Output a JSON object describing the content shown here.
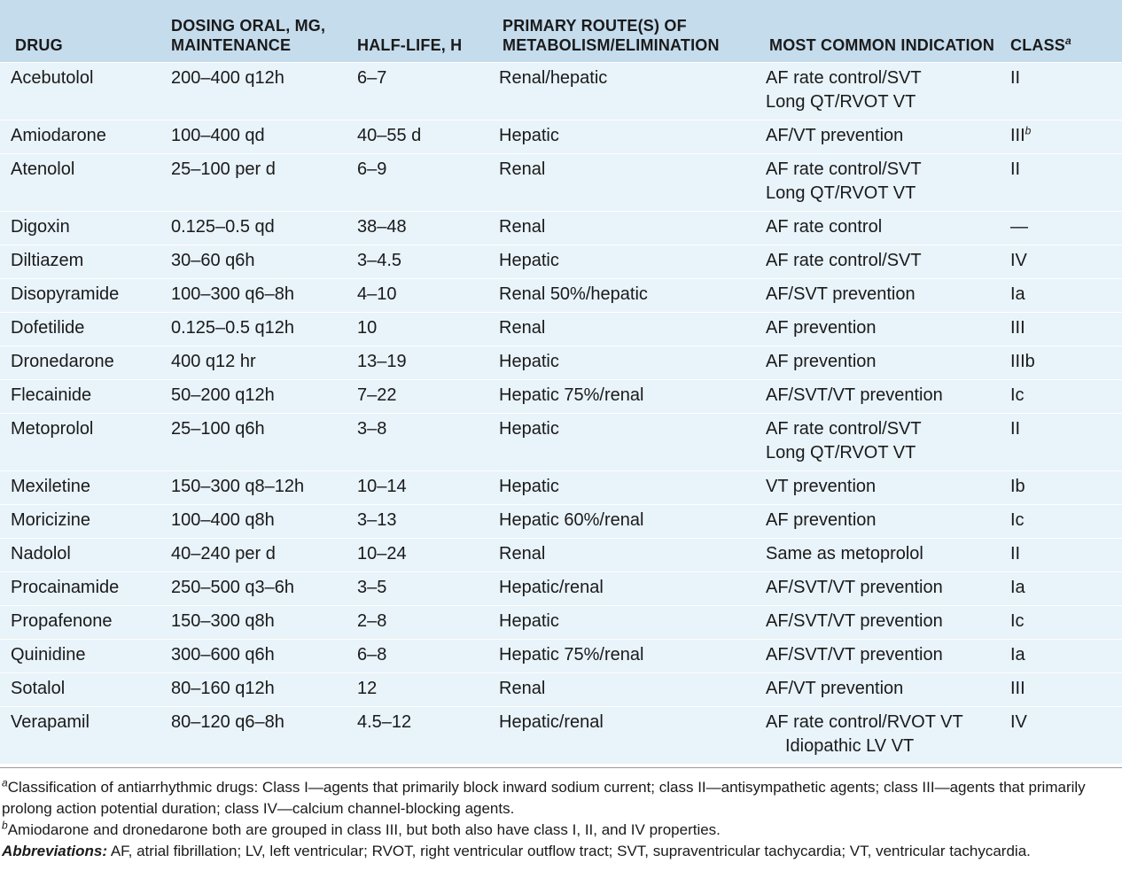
{
  "headers": {
    "drug": "DRUG",
    "dosing": "DOSING ORAL, MG, MAINTENANCE",
    "half_life": "HALF-LIFE, H",
    "route": "PRIMARY ROUTE(S) OF METABOLISM/ELIMINATION",
    "indication": "MOST COMMON INDICATION",
    "class": "CLASS",
    "class_sup": "a"
  },
  "rows": [
    {
      "drug": "Acebutolol",
      "dosing": "200–400 q12h",
      "half_life": "6–7",
      "route": "Renal/hepatic",
      "indication": "AF rate control/SVT",
      "indication2": "Long QT/RVOT VT",
      "class": "II",
      "class_sup": ""
    },
    {
      "drug": "Amiodarone",
      "dosing": "100–400 qd",
      "half_life": "40–55 d",
      "route": "Hepatic",
      "indication": "AF/VT prevention",
      "indication2": "",
      "class": "III",
      "class_sup": "b"
    },
    {
      "drug": "Atenolol",
      "dosing": "25–100 per d",
      "half_life": "6–9",
      "route": "Renal",
      "indication": "AF rate control/SVT",
      "indication2": "Long QT/RVOT VT",
      "class": "II",
      "class_sup": ""
    },
    {
      "drug": "Digoxin",
      "dosing": "0.125–0.5 qd",
      "half_life": "38–48",
      "route": "Renal",
      "indication": "AF rate control",
      "indication2": "",
      "class": "—",
      "class_sup": ""
    },
    {
      "drug": "Diltiazem",
      "dosing": "30–60 q6h",
      "half_life": "3–4.5",
      "route": "Hepatic",
      "indication": "AF rate control/SVT",
      "indication2": "",
      "class": "IV",
      "class_sup": ""
    },
    {
      "drug": "Disopyramide",
      "dosing": "100–300 q6–8h",
      "half_life": "4–10",
      "route": "Renal 50%/hepatic",
      "indication": "AF/SVT prevention",
      "indication2": "",
      "class": "Ia",
      "class_sup": ""
    },
    {
      "drug": "Dofetilide",
      "dosing": "0.125–0.5 q12h",
      "half_life": "10",
      "route": "Renal",
      "indication": "AF prevention",
      "indication2": "",
      "class": "III",
      "class_sup": ""
    },
    {
      "drug": "Dronedarone",
      "dosing": "400 q12 hr",
      "half_life": "13–19",
      "route": "Hepatic",
      "indication": "AF prevention",
      "indication2": "",
      "class": "IIIb",
      "class_sup": ""
    },
    {
      "drug": "Flecainide",
      "dosing": "50–200 q12h",
      "half_life": "7–22",
      "route": "Hepatic 75%/renal",
      "indication": "AF/SVT/VT prevention",
      "indication2": "",
      "class": "Ic",
      "class_sup": ""
    },
    {
      "drug": "Metoprolol",
      "dosing": "25–100 q6h",
      "half_life": "3–8",
      "route": "Hepatic",
      "indication": "AF rate control/SVT",
      "indication2": "Long QT/RVOT VT",
      "class": "II",
      "class_sup": ""
    },
    {
      "drug": "Mexiletine",
      "dosing": "150–300 q8–12h",
      "half_life": "10–14",
      "route": "Hepatic",
      "indication": "VT prevention",
      "indication2": "",
      "class": "Ib",
      "class_sup": ""
    },
    {
      "drug": "Moricizine",
      "dosing": "100–400 q8h",
      "half_life": "3–13",
      "route": "Hepatic 60%/renal",
      "indication": "AF prevention",
      "indication2": "",
      "class": "Ic",
      "class_sup": ""
    },
    {
      "drug": "Nadolol",
      "dosing": "40–240 per d",
      "half_life": "10–24",
      "route": "Renal",
      "indication": "Same as metoprolol",
      "indication2": "",
      "class": "II",
      "class_sup": ""
    },
    {
      "drug": "Procainamide",
      "dosing": "250–500 q3–6h",
      "half_life": "3–5",
      "route": "Hepatic/renal",
      "indication": "AF/SVT/VT prevention",
      "indication2": "",
      "class": "Ia",
      "class_sup": ""
    },
    {
      "drug": "Propafenone",
      "dosing": "150–300 q8h",
      "half_life": "2–8",
      "route": "Hepatic",
      "indication": "AF/SVT/VT prevention",
      "indication2": "",
      "class": "Ic",
      "class_sup": ""
    },
    {
      "drug": "Quinidine",
      "dosing": "300–600 q6h",
      "half_life": "6–8",
      "route": "Hepatic 75%/renal",
      "indication": "AF/SVT/VT prevention",
      "indication2": "",
      "class": "Ia",
      "class_sup": ""
    },
    {
      "drug": "Sotalol",
      "dosing": "80–160 q12h",
      "half_life": "12",
      "route": "Renal",
      "indication": "AF/VT prevention",
      "indication2": "",
      "class": "III",
      "class_sup": ""
    },
    {
      "drug": "Verapamil",
      "dosing": "80–120 q6–8h",
      "half_life": "4.5–12",
      "route": "Hepatic/renal",
      "indication": "AF rate control/RVOT VT",
      "indication2": "Idiopathic LV VT",
      "class": "IV",
      "class_sup": ""
    }
  ],
  "footnotes": {
    "a_mark": "a",
    "a_text": "Classification of antiarrhythmic drugs: Class I—agents that primarily block inward sodium current; class II—antisympathetic agents; class III—agents that primarily prolong action potential duration; class IV—calcium channel-blocking agents.",
    "b_mark": "b",
    "b_text": "Amiodarone and dronedarone both are grouped in class III, but both also have class I, II, and IV properties.",
    "abbrev_label": "Abbreviations:",
    "abbrev_text": " AF, atrial fibrillation; LV, left ventricular; RVOT, right ventricular outflow tract; SVT, supraventricular tachycardia; VT, ventricular tachycardia."
  }
}
